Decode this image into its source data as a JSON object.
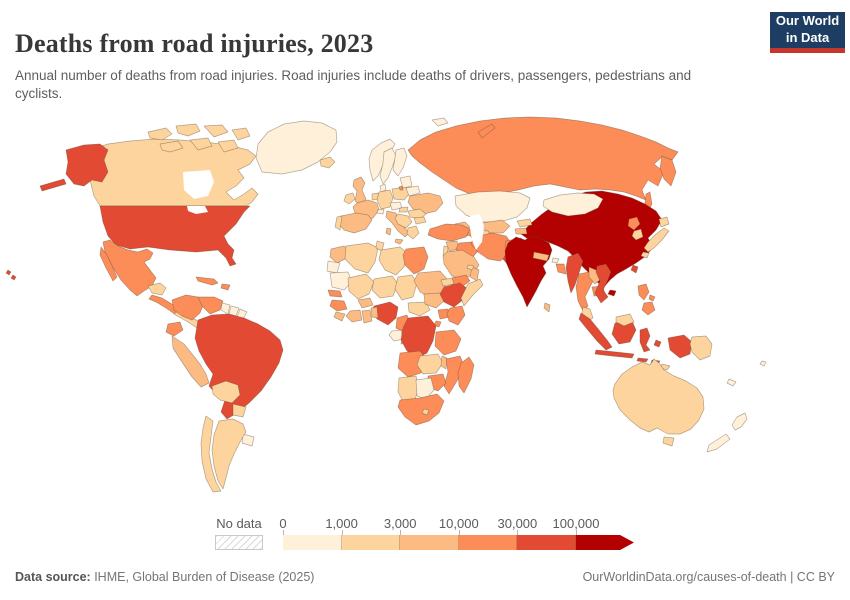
{
  "header": {
    "title": "Deaths from road injuries, 2023",
    "subtitle": "Annual number of deaths from road injuries. Road injuries include deaths of drivers, passengers, pedestrians and cyclists.",
    "logo": {
      "line1": "Our World",
      "line2": "in Data"
    }
  },
  "legend": {
    "no_data_label": "No data",
    "ticks": [
      "0",
      "1,000",
      "3,000",
      "10,000",
      "30,000",
      "100,000"
    ]
  },
  "footer": {
    "source_label": "Data source:",
    "source_text": " IHME, Global Burden of Disease (2025)",
    "right_text": "OurWorldinData.org/causes-of-death | CC BY"
  },
  "colors": {
    "logo_navy": "#1d3d63",
    "logo_red": "#c5372c",
    "border": "#8b7355",
    "no_data": "hatched-white"
  },
  "chart_data": {
    "type": "choropleth",
    "title": "Deaths from road injuries, 2023",
    "metric": "Annual number of deaths from road injuries",
    "year": 2023,
    "unit": "deaths",
    "projection": "world",
    "legend_bins": [
      {
        "range": "0-1,000",
        "color": "#fef0d9"
      },
      {
        "range": "1,000-3,000",
        "color": "#fdd49e"
      },
      {
        "range": "3,000-10,000",
        "color": "#fdbb84"
      },
      {
        "range": "10,000-30,000",
        "color": "#fc8d59"
      },
      {
        "range": "30,000-100,000",
        "color": "#e34a33"
      },
      {
        "range": "100,000+",
        "color": "#b30000"
      }
    ],
    "countries": {
      "greenland": 0,
      "norway": 0,
      "sweden": 0,
      "finland": 0,
      "denmark": 0,
      "baltic-states": 0,
      "belarus": 0,
      "switzerland": 0,
      "austria": 0,
      "mongolia": 0,
      "kazakhstan": 0,
      "guyana": 0,
      "suriname": 0,
      "french-guiana": 0,
      "uruguay": 0,
      "gabon": 0,
      "botswana": 0,
      "western-sahara": 0,
      "mauritania": 0,
      "new-zealand": 0,
      "new-caledonia": 0,
      "fiji": 0,
      "bhutan": 0,
      "svalbard": 0,
      "canada": 1,
      "iceland": 1,
      "ireland": 1,
      "netherlands": 1,
      "germany": 1,
      "portugal": 1,
      "poland": 1,
      "romania": 1,
      "hungary": 1,
      "serbia": 1,
      "greece": 1,
      "bulgaria": 1,
      "argentina": 1,
      "chile": 1,
      "bolivia": 1,
      "paraguay": 1,
      "guatemala": 1,
      "nicaragua": 1,
      "turkmenistan": 1,
      "kyrgyzstan": 1,
      "uae": 1,
      "israel": 1,
      "malaysia": 1,
      "papua-new-guinea": 1,
      "east-timor": 1,
      "south-korea": 1,
      "japan": 1,
      "australia": 1,
      "algeria": 1,
      "tunisia": 1,
      "libya": 1,
      "mali": 1,
      "niger": 1,
      "chad": 1,
      "central-african-republic": 1,
      "eritrea": 1,
      "somalia": 1,
      "zambia": 1,
      "namibia": 1,
      "lesotho": 1,
      "united-kingdom": 2,
      "france": 2,
      "spain": 2,
      "italy": 2,
      "ukraine": 2,
      "morocco": 2,
      "peru": 2,
      "uzbekistan": 2,
      "tajikistan": 2,
      "georgia": 2,
      "syria": 2,
      "saudi-arabia": 2,
      "oman": 2,
      "nepal": 2,
      "sri-lanka": 2,
      "laos": 2,
      "sierra-leone": 2,
      "ivory-coast": 2,
      "ghana": 2,
      "benin": 2,
      "burkina-faso": 2,
      "sudan": 2,
      "south-sudan": 2,
      "congo": 2,
      "malawi": 2,
      "russia": 3,
      "mexico": 3,
      "honduras": 3,
      "cuba": 3,
      "dominican-republic": 3,
      "colombia": 3,
      "venezuela": 3,
      "ecuador": 3,
      "turkey": 3,
      "azerbaijan": 3,
      "iraq": 3,
      "iran": 3,
      "afghanistan": 3,
      "yemen": 3,
      "bangladesh": 3,
      "thailand": 3,
      "cambodia": 3,
      "north-korea": 3,
      "philippines": 3,
      "egypt": 3,
      "senegal": 3,
      "guinea": 3,
      "cameroon": 3,
      "uganda": 3,
      "kenya": 3,
      "rwanda": 3,
      "tanzania": 3,
      "angola": 3,
      "mozambique": 3,
      "zimbabwe": 3,
      "south-africa": 3,
      "madagascar": 3,
      "united-states": 4,
      "brazil": 4,
      "nigeria": 4,
      "ethiopia": 4,
      "democratic-republic-of-congo": 4,
      "pakistan": 4,
      "myanmar": 4,
      "vietnam": 4,
      "indonesia": 4,
      "taiwan": 4,
      "china": 5,
      "india": 5
    }
  }
}
